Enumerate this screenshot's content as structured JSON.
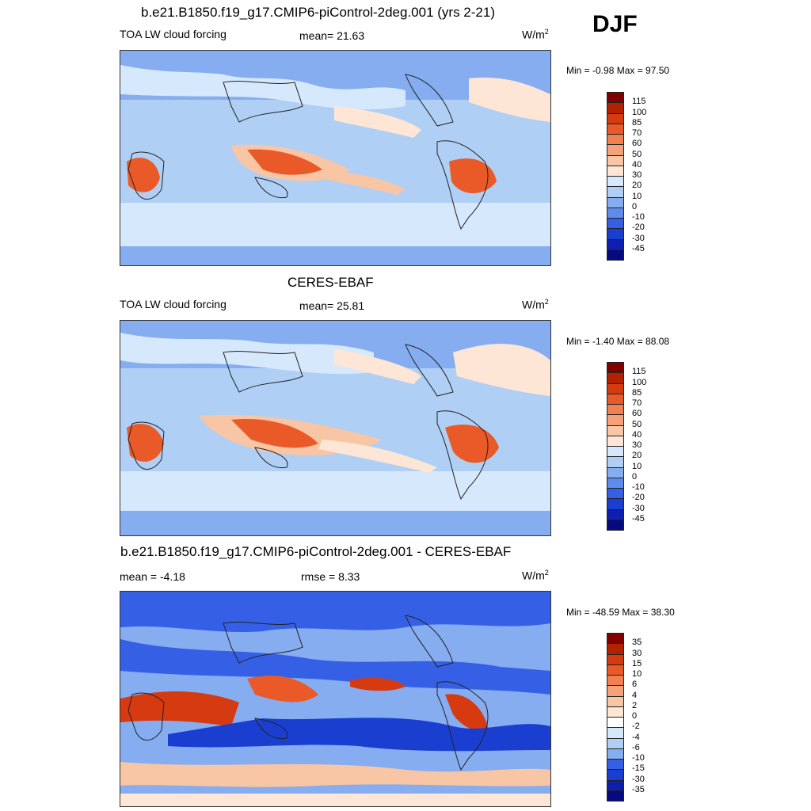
{
  "season": "DJF",
  "panels": [
    {
      "title": "b.e21.B1850.f19_g17.CMIP6-piControl-2deg.001 (yrs 2-21)",
      "variable": "TOA LW cloud forcing",
      "stat1": "mean=  21.63",
      "stat2": "",
      "units": "W/m",
      "units_sup": "2",
      "minmax": "Min =  -0.98 Max =  97.50",
      "levels": [
        "115",
        "100",
        "85",
        "70",
        "60",
        "50",
        "40",
        "30",
        "20",
        "10",
        "0",
        "-10",
        "-20",
        "-30",
        "-45"
      ],
      "colors": [
        "#800000",
        "#b22200",
        "#d63a10",
        "#ea5a28",
        "#f28050",
        "#f5a27a",
        "#f8c5a5",
        "#fde6d6",
        "#d6e8fb",
        "#b0cff5",
        "#86adf0",
        "#5f8cec",
        "#3560e6",
        "#1a3fd0",
        "#0e1fb0",
        "#060a80"
      ]
    },
    {
      "title": "CERES-EBAF",
      "variable": "TOA LW cloud forcing",
      "stat1": "mean=  25.81",
      "stat2": "",
      "units": "W/m",
      "units_sup": "2",
      "minmax": "Min =  -1.40 Max =  88.08",
      "levels": [
        "115",
        "100",
        "85",
        "70",
        "60",
        "50",
        "40",
        "30",
        "20",
        "10",
        "0",
        "-10",
        "-20",
        "-30",
        "-45"
      ],
      "colors": [
        "#800000",
        "#b22200",
        "#d63a10",
        "#ea5a28",
        "#f28050",
        "#f5a27a",
        "#f8c5a5",
        "#fde6d6",
        "#d6e8fb",
        "#b0cff5",
        "#86adf0",
        "#5f8cec",
        "#3560e6",
        "#1a3fd0",
        "#0e1fb0",
        "#060a80"
      ]
    },
    {
      "title": "b.e21.B1850.f19_g17.CMIP6-piControl-2deg.001 - CERES-EBAF",
      "variable": "mean =  -4.18",
      "stat1": "rmse =   8.33",
      "stat2": "",
      "units": "W/m",
      "units_sup": "2",
      "minmax": "Min = -48.59 Max =  38.30",
      "levels": [
        "35",
        "30",
        "15",
        "10",
        "6",
        "4",
        "2",
        "0",
        "-2",
        "-4",
        "-6",
        "-10",
        "-15",
        "-30",
        "-35"
      ],
      "colors": [
        "#800000",
        "#b22200",
        "#d63a10",
        "#ea5a28",
        "#f28050",
        "#f5a27a",
        "#f8c5a5",
        "#fde6d6",
        "#ffffff",
        "#d6e8fb",
        "#b0cff5",
        "#86adf0",
        "#3560e6",
        "#1a3fd0",
        "#0e1fb0",
        "#060a80"
      ]
    }
  ],
  "chart_data": [
    {
      "type": "heatmap",
      "title": "b.e21.B1850.f19_g17.CMIP6-piControl-2deg.001 (yrs 2-21)",
      "subtitle": "TOA LW cloud forcing",
      "mean": 21.63,
      "units": "W/m2",
      "min": -0.98,
      "max": 97.5,
      "contour_levels": [
        -45,
        -30,
        -20,
        -10,
        0,
        10,
        20,
        30,
        40,
        50,
        60,
        70,
        85,
        100,
        115
      ],
      "legend": "right"
    },
    {
      "type": "heatmap",
      "title": "CERES-EBAF",
      "subtitle": "TOA LW cloud forcing",
      "mean": 25.81,
      "units": "W/m2",
      "min": -1.4,
      "max": 88.08,
      "contour_levels": [
        -45,
        -30,
        -20,
        -10,
        0,
        10,
        20,
        30,
        40,
        50,
        60,
        70,
        85,
        100,
        115
      ],
      "legend": "right"
    },
    {
      "type": "heatmap",
      "title": "b.e21.B1850.f19_g17.CMIP6-piControl-2deg.001 - CERES-EBAF",
      "mean": -4.18,
      "rmse": 8.33,
      "units": "W/m2",
      "min": -48.59,
      "max": 38.3,
      "contour_levels": [
        -35,
        -30,
        -15,
        -10,
        -6,
        -4,
        -2,
        0,
        2,
        4,
        6,
        10,
        15,
        30,
        35
      ],
      "legend": "right"
    }
  ]
}
